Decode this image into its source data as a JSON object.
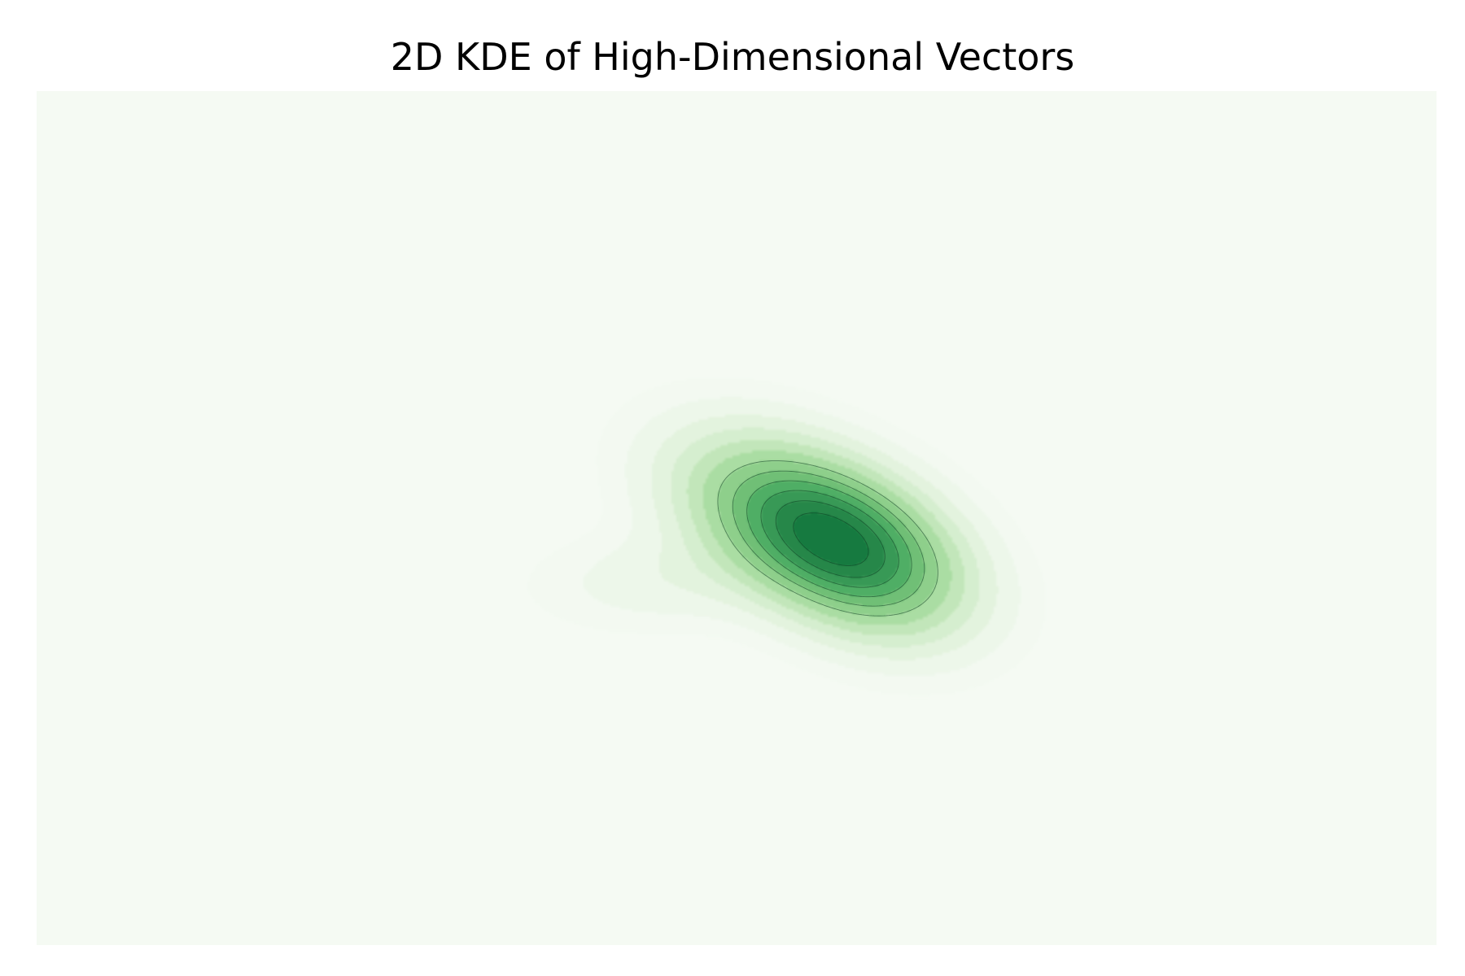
{
  "chart_data": {
    "type": "heatmap",
    "title": "2D KDE of High-Dimensional Vectors",
    "xlabel": "",
    "ylabel": "",
    "axes_visible": false,
    "grid": false,
    "legend": "none",
    "colormap": "Greens",
    "background_color": "#f5faf3",
    "fill_colors": [
      "#f3f9f1",
      "#edf7ea",
      "#e3f3de",
      "#d5eecf",
      "#c2e6ba",
      "#aadda3",
      "#8ecf8b",
      "#6fbf76",
      "#4fae65",
      "#379957",
      "#25874a",
      "#167a40"
    ],
    "line_color": "#0d3b20",
    "density_components": [
      {
        "cx": 0.0,
        "cy": 0.0,
        "sx": 0.55,
        "sy": 0.38,
        "rho": -0.45,
        "weight": 1.0
      },
      {
        "cx": 0.35,
        "cy": -0.25,
        "sx": 0.45,
        "sy": 0.35,
        "rho": -0.3,
        "weight": 0.35
      },
      {
        "cx": -1.05,
        "cy": -0.35,
        "sx": 0.55,
        "sy": 0.22,
        "rho": 0.1,
        "weight": 0.1
      }
    ],
    "levels": [
      0.02,
      0.05,
      0.1,
      0.16,
      0.23,
      0.31,
      0.4,
      0.5,
      0.6,
      0.7,
      0.8,
      0.9
    ]
  }
}
